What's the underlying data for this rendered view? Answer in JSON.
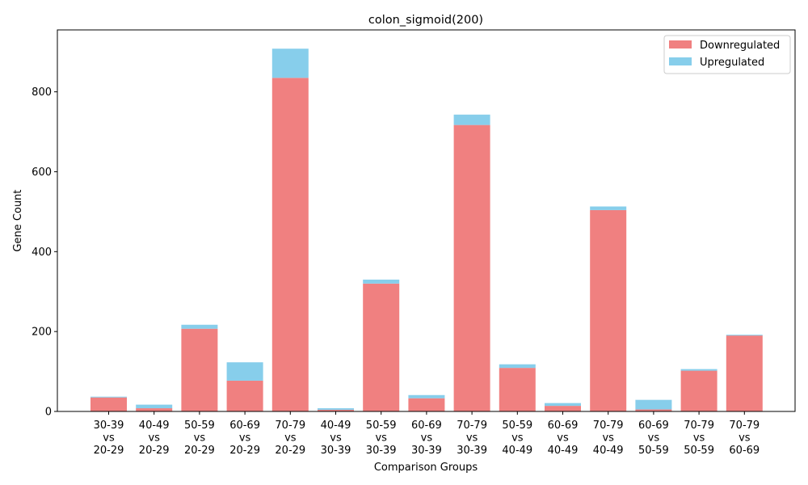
{
  "chart_data": {
    "type": "bar",
    "stacked": true,
    "title": "colon_sigmoid(200)",
    "xlabel": "Comparison Groups",
    "ylabel": "Gene Count",
    "ylim": [
      0,
      955
    ],
    "yticks": [
      0,
      200,
      400,
      600,
      800
    ],
    "grid": false,
    "legend_position": "top-right",
    "categories": [
      [
        "30-39",
        "vs",
        "20-29"
      ],
      [
        "40-49",
        "vs",
        "20-29"
      ],
      [
        "50-59",
        "vs",
        "20-29"
      ],
      [
        "60-69",
        "vs",
        "20-29"
      ],
      [
        "70-79",
        "vs",
        "20-29"
      ],
      [
        "40-49",
        "vs",
        "30-39"
      ],
      [
        "50-59",
        "vs",
        "30-39"
      ],
      [
        "60-69",
        "vs",
        "30-39"
      ],
      [
        "70-79",
        "vs",
        "30-39"
      ],
      [
        "50-59",
        "vs",
        "40-49"
      ],
      [
        "60-69",
        "vs",
        "40-49"
      ],
      [
        "70-79",
        "vs",
        "40-49"
      ],
      [
        "60-69",
        "vs",
        "50-59"
      ],
      [
        "70-79",
        "vs",
        "50-59"
      ],
      [
        "70-79",
        "vs",
        "60-69"
      ]
    ],
    "series": [
      {
        "name": "Downregulated",
        "color": "#f08080",
        "values": [
          35,
          8,
          207,
          77,
          835,
          4,
          320,
          33,
          717,
          109,
          14,
          504,
          5,
          102,
          190
        ]
      },
      {
        "name": "Upregulated",
        "color": "#87ceeb",
        "values": [
          2,
          9,
          10,
          46,
          73,
          4,
          10,
          8,
          26,
          9,
          7,
          9,
          24,
          4,
          2
        ]
      }
    ]
  }
}
